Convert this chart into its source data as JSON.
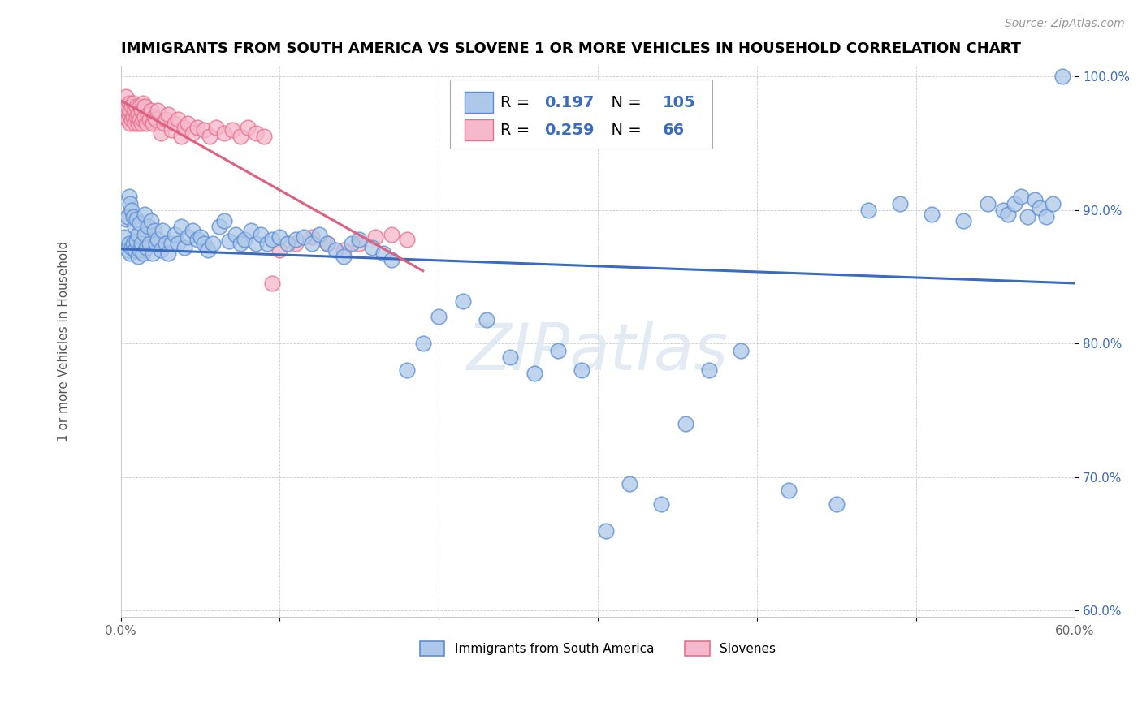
{
  "title": "IMMIGRANTS FROM SOUTH AMERICA VS SLOVENE 1 OR MORE VEHICLES IN HOUSEHOLD CORRELATION CHART",
  "source": "Source: ZipAtlas.com",
  "ylabel": "1 or more Vehicles in Household",
  "xlim": [
    0.0,
    0.6
  ],
  "ylim": [
    0.595,
    1.008
  ],
  "xtick_positions": [
    0.0,
    0.1,
    0.2,
    0.3,
    0.4,
    0.5,
    0.6
  ],
  "xtick_labels": [
    "0.0%",
    "",
    "",
    "",
    "",
    "",
    "60.0%"
  ],
  "ytick_positions": [
    0.6,
    0.7,
    0.8,
    0.9,
    1.0
  ],
  "ytick_labels": [
    "60.0%",
    "70.0%",
    "80.0%",
    "90.0%",
    "100.0%"
  ],
  "blue_R": 0.197,
  "blue_N": 105,
  "pink_R": 0.259,
  "pink_N": 66,
  "blue_scatter_color": "#adc8e8",
  "blue_edge_color": "#5b8ed6",
  "pink_scatter_color": "#f5b8cc",
  "pink_edge_color": "#e8708a",
  "blue_line_color": "#3a6bbf",
  "pink_line_color": "#e06080",
  "legend_label_blue": "Immigrants from South America",
  "legend_label_pink": "Slovenes",
  "blue_scatter_x": [
    0.002,
    0.003,
    0.004,
    0.004,
    0.005,
    0.005,
    0.006,
    0.006,
    0.007,
    0.007,
    0.008,
    0.008,
    0.009,
    0.009,
    0.01,
    0.01,
    0.011,
    0.011,
    0.012,
    0.012,
    0.013,
    0.014,
    0.015,
    0.015,
    0.016,
    0.017,
    0.018,
    0.019,
    0.02,
    0.021,
    0.022,
    0.023,
    0.025,
    0.026,
    0.028,
    0.03,
    0.032,
    0.034,
    0.036,
    0.038,
    0.04,
    0.042,
    0.045,
    0.048,
    0.05,
    0.052,
    0.055,
    0.058,
    0.062,
    0.065,
    0.068,
    0.072,
    0.075,
    0.078,
    0.082,
    0.085,
    0.088,
    0.092,
    0.095,
    0.1,
    0.105,
    0.11,
    0.115,
    0.12,
    0.125,
    0.13,
    0.135,
    0.14,
    0.145,
    0.15,
    0.158,
    0.165,
    0.17,
    0.18,
    0.19,
    0.2,
    0.215,
    0.23,
    0.245,
    0.26,
    0.275,
    0.29,
    0.305,
    0.32,
    0.34,
    0.355,
    0.37,
    0.39,
    0.42,
    0.45,
    0.47,
    0.49,
    0.51,
    0.53,
    0.545,
    0.555,
    0.558,
    0.562,
    0.566,
    0.57,
    0.575,
    0.578,
    0.582,
    0.586,
    0.592
  ],
  "blue_scatter_y": [
    0.88,
    0.893,
    0.87,
    0.895,
    0.875,
    0.91,
    0.868,
    0.905,
    0.872,
    0.9,
    0.875,
    0.895,
    0.87,
    0.888,
    0.877,
    0.893,
    0.865,
    0.882,
    0.87,
    0.89,
    0.875,
    0.868,
    0.882,
    0.897,
    0.872,
    0.888,
    0.875,
    0.892,
    0.868,
    0.885,
    0.875,
    0.878,
    0.87,
    0.885,
    0.875,
    0.868,
    0.875,
    0.882,
    0.875,
    0.888,
    0.872,
    0.88,
    0.885,
    0.878,
    0.88,
    0.875,
    0.87,
    0.875,
    0.888,
    0.892,
    0.877,
    0.882,
    0.875,
    0.878,
    0.885,
    0.875,
    0.882,
    0.875,
    0.878,
    0.88,
    0.875,
    0.878,
    0.88,
    0.875,
    0.882,
    0.875,
    0.87,
    0.865,
    0.875,
    0.878,
    0.872,
    0.868,
    0.863,
    0.78,
    0.8,
    0.82,
    0.832,
    0.818,
    0.79,
    0.778,
    0.795,
    0.78,
    0.66,
    0.695,
    0.68,
    0.74,
    0.78,
    0.795,
    0.69,
    0.68,
    0.9,
    0.905,
    0.897,
    0.892,
    0.905,
    0.9,
    0.897,
    0.905,
    0.91,
    0.895,
    0.908,
    0.902,
    0.895,
    0.905,
    1.0
  ],
  "pink_scatter_x": [
    0.002,
    0.003,
    0.003,
    0.004,
    0.004,
    0.005,
    0.005,
    0.006,
    0.006,
    0.007,
    0.007,
    0.008,
    0.008,
    0.009,
    0.009,
    0.01,
    0.01,
    0.011,
    0.011,
    0.012,
    0.012,
    0.013,
    0.013,
    0.014,
    0.014,
    0.015,
    0.015,
    0.016,
    0.017,
    0.018,
    0.019,
    0.02,
    0.021,
    0.022,
    0.023,
    0.025,
    0.027,
    0.028,
    0.03,
    0.032,
    0.034,
    0.036,
    0.038,
    0.04,
    0.042,
    0.045,
    0.048,
    0.052,
    0.056,
    0.06,
    0.065,
    0.07,
    0.075,
    0.08,
    0.085,
    0.09,
    0.095,
    0.1,
    0.11,
    0.12,
    0.13,
    0.14,
    0.15,
    0.16,
    0.17,
    0.18
  ],
  "pink_scatter_y": [
    0.97,
    0.975,
    0.985,
    0.968,
    0.978,
    0.972,
    0.98,
    0.965,
    0.975,
    0.968,
    0.978,
    0.97,
    0.98,
    0.965,
    0.975,
    0.97,
    0.978,
    0.965,
    0.972,
    0.968,
    0.978,
    0.965,
    0.975,
    0.968,
    0.98,
    0.97,
    0.978,
    0.965,
    0.972,
    0.968,
    0.975,
    0.965,
    0.97,
    0.968,
    0.975,
    0.958,
    0.965,
    0.968,
    0.972,
    0.96,
    0.965,
    0.968,
    0.955,
    0.962,
    0.965,
    0.958,
    0.962,
    0.96,
    0.955,
    0.962,
    0.958,
    0.96,
    0.955,
    0.962,
    0.958,
    0.955,
    0.845,
    0.87,
    0.875,
    0.88,
    0.875,
    0.87,
    0.875,
    0.88,
    0.882,
    0.878
  ],
  "watermark": "ZIPatlas",
  "title_fontsize": 13,
  "marker_size": 180
}
